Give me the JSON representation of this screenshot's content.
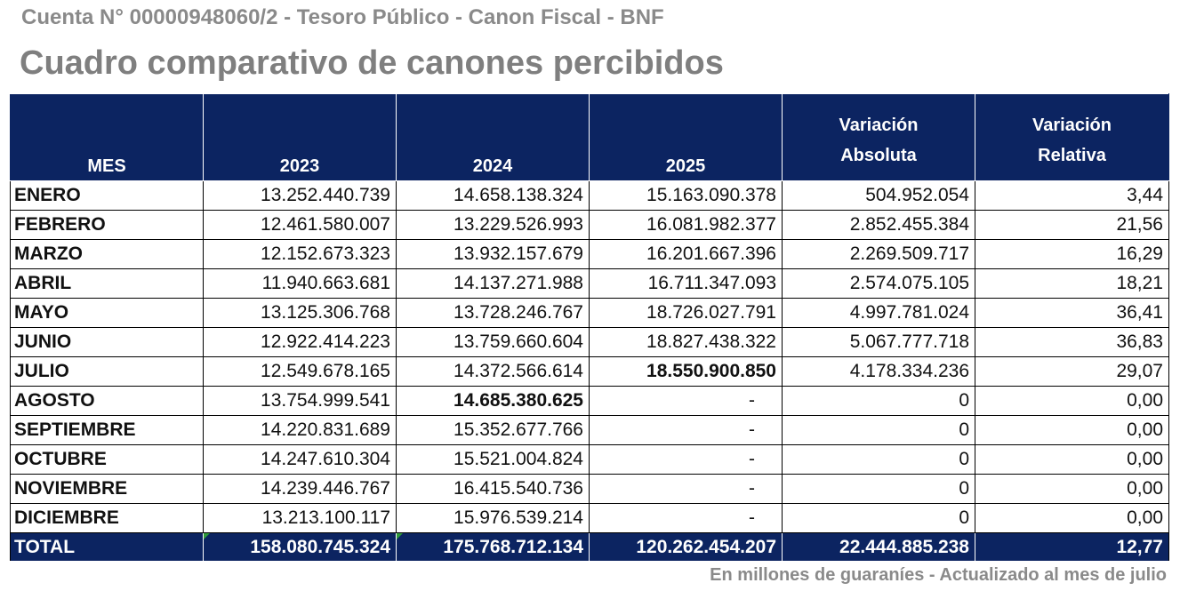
{
  "header": {
    "subtitle": "Cuenta N° 00000948060/2 - Tesoro Público - Canon Fiscal - BNF",
    "title": "Cuadro comparativo de canones percibidos"
  },
  "table": {
    "columns": {
      "mes": "MES",
      "y2023": "2023",
      "y2024": "2024",
      "y2025": "2025",
      "var_abs_line1": "Variación",
      "var_abs_line2": "Absoluta",
      "var_rel_line1": "Variación",
      "var_rel_line2": "Relativa"
    },
    "rows": [
      {
        "mes": "ENERO",
        "y2023": "13.252.440.739",
        "y2024": "14.658.138.324",
        "y2025": "15.163.090.378",
        "var_abs": "504.952.054",
        "var_rel": "3,44"
      },
      {
        "mes": "FEBRERO",
        "y2023": "12.461.580.007",
        "y2024": "13.229.526.993",
        "y2025": "16.081.982.377",
        "var_abs": "2.852.455.384",
        "var_rel": "21,56"
      },
      {
        "mes": "MARZO",
        "y2023": "12.152.673.323",
        "y2024": "13.932.157.679",
        "y2025": "16.201.667.396",
        "var_abs": "2.269.509.717",
        "var_rel": "16,29"
      },
      {
        "mes": "ABRIL",
        "y2023": "11.940.663.681",
        "y2024": "14.137.271.988",
        "y2025": "16.711.347.093",
        "var_abs": "2.574.075.105",
        "var_rel": "18,21"
      },
      {
        "mes": "MAYO",
        "y2023": "13.125.306.768",
        "y2024": "13.728.246.767",
        "y2025": "18.726.027.791",
        "var_abs": "4.997.781.024",
        "var_rel": "36,41"
      },
      {
        "mes": "JUNIO",
        "y2023": "12.922.414.223",
        "y2024": "13.759.660.604",
        "y2025": "18.827.438.322",
        "var_abs": "5.067.777.718",
        "var_rel": "36,83"
      },
      {
        "mes": "JULIO",
        "y2023": "12.549.678.165",
        "y2024": "14.372.566.614",
        "y2025": "18.550.900.850",
        "var_abs": "4.178.334.236",
        "var_rel": "29,07"
      },
      {
        "mes": "AGOSTO",
        "y2023": "13.754.999.541",
        "y2024": "14.685.380.625",
        "y2025": "-",
        "var_abs": "0",
        "var_rel": "0,00"
      },
      {
        "mes": "SEPTIEMBRE",
        "y2023": "14.220.831.689",
        "y2024": "15.352.677.766",
        "y2025": "-",
        "var_abs": "0",
        "var_rel": "0,00"
      },
      {
        "mes": "OCTUBRE",
        "y2023": "14.247.610.304",
        "y2024": "15.521.004.824",
        "y2025": "-",
        "var_abs": "0",
        "var_rel": "0,00"
      },
      {
        "mes": "NOVIEMBRE",
        "y2023": "14.239.446.767",
        "y2024": "16.415.540.736",
        "y2025": "-",
        "var_abs": "0",
        "var_rel": "0,00"
      },
      {
        "mes": "DICIEMBRE",
        "y2023": "13.213.100.117",
        "y2024": "15.976.539.214",
        "y2025": "-",
        "var_abs": "0",
        "var_rel": "0,00"
      }
    ],
    "total": {
      "mes": "TOTAL",
      "y2023": "158.080.745.324",
      "y2024": "175.768.712.134",
      "y2025": "120.262.454.207",
      "var_abs": "22.444.885.238",
      "var_rel": "12,77"
    }
  },
  "footer": {
    "note": "En millones de guaraníes - Actualizado al mes de julio"
  },
  "colors": {
    "header_bg": "#0c2461",
    "title_gray": "#7f7f7f",
    "cell_marker_green": "#2e9a3a"
  }
}
